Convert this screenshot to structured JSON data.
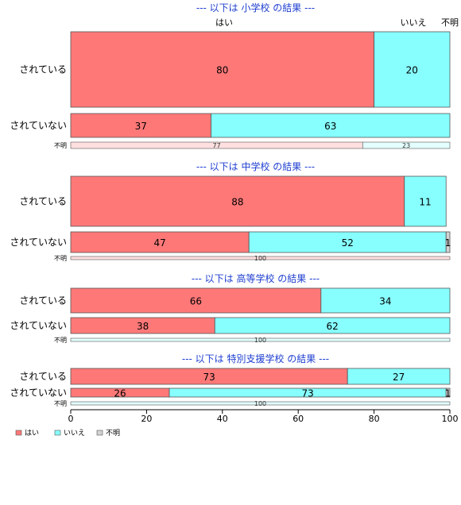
{
  "chart_data": {
    "type": "bar",
    "orientation": "horizontal",
    "stacked": true,
    "normalized_percent": true,
    "xlim": [
      0,
      100
    ],
    "x_ticks": [
      0,
      20,
      40,
      60,
      80,
      100
    ],
    "category_headers": [
      "はい",
      "いいえ",
      "不明"
    ],
    "legend": {
      "position": "bottom-left",
      "entries": [
        {
          "label": "はい",
          "color": "#ff7878"
        },
        {
          "label": "いいえ",
          "color": "#87ffff"
        },
        {
          "label": "不明",
          "color": "#d3d3d3"
        }
      ]
    },
    "colors": {
      "はい": "#ff7878",
      "いいえ": "#87ffff",
      "不明": "#d3d3d3"
    },
    "panels": [
      {
        "title": "--- 以下は 小学校 の結果 ---",
        "rows": [
          {
            "label": "されている",
            "values": [
              80,
              20,
              0
            ],
            "labels": [
              "80",
              "20",
              ""
            ]
          },
          {
            "label": "されていない",
            "values": [
              37,
              63,
              0
            ],
            "labels": [
              "37",
              "63",
              ""
            ]
          },
          {
            "label": "不明",
            "values": [
              77,
              23,
              0
            ],
            "labels": [
              "77",
              "23",
              ""
            ]
          }
        ]
      },
      {
        "title": "--- 以下は 中学校 の結果 ---",
        "rows": [
          {
            "label": "されている",
            "values": [
              88,
              11,
              0
            ],
            "labels": [
              "88",
              "11",
              ""
            ]
          },
          {
            "label": "されていない",
            "values": [
              47,
              52,
              1
            ],
            "labels": [
              "47",
              "52",
              "1"
            ]
          },
          {
            "label": "不明",
            "values": [
              100,
              0,
              0
            ],
            "labels": [
              "100",
              "",
              ""
            ]
          }
        ]
      },
      {
        "title": "--- 以下は 高等学校 の結果 ---",
        "rows": [
          {
            "label": "されている",
            "values": [
              66,
              34,
              0
            ],
            "labels": [
              "66",
              "34",
              ""
            ]
          },
          {
            "label": "されていない",
            "values": [
              38,
              62,
              0
            ],
            "labels": [
              "38",
              "62",
              ""
            ]
          },
          {
            "label": "不明",
            "values": [
              0,
              100,
              0
            ],
            "labels": [
              "",
              "100",
              ""
            ]
          }
        ]
      },
      {
        "title": "--- 以下は 特別支援学校 の結果 ---",
        "rows": [
          {
            "label": "されている",
            "values": [
              73,
              27,
              0
            ],
            "labels": [
              "73",
              "27",
              ""
            ]
          },
          {
            "label": "されていない",
            "values": [
              26,
              73,
              1
            ],
            "labels": [
              "26",
              "73",
              "1"
            ]
          },
          {
            "label": "不明",
            "values": [
              0,
              100,
              0
            ],
            "labels": [
              "",
              "100",
              ""
            ]
          }
        ]
      }
    ]
  }
}
